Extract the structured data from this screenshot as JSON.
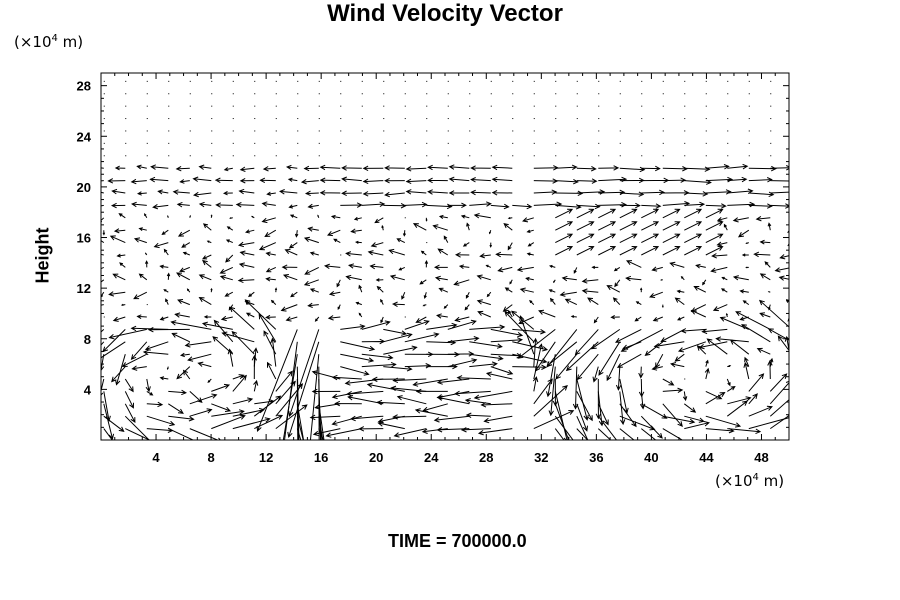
{
  "chart_data": {
    "type": "vector_field",
    "title": "Wind Velocity Vector",
    "ylabel": "Height",
    "x_unit": "(×10⁴ m)",
    "y_unit": "(×10⁴ m)",
    "x_unit_base": "(×10",
    "x_unit_exp": "4",
    "x_unit_tail": " m)",
    "xlim": [
      0,
      50
    ],
    "ylim": [
      0,
      29
    ],
    "x_ticks": [
      4,
      8,
      12,
      16,
      20,
      24,
      28,
      32,
      36,
      40,
      44,
      48
    ],
    "y_ticks": [
      4,
      8,
      12,
      16,
      20,
      24,
      28
    ],
    "grid": false,
    "time_label": "TIME = 700000.0"
  }
}
